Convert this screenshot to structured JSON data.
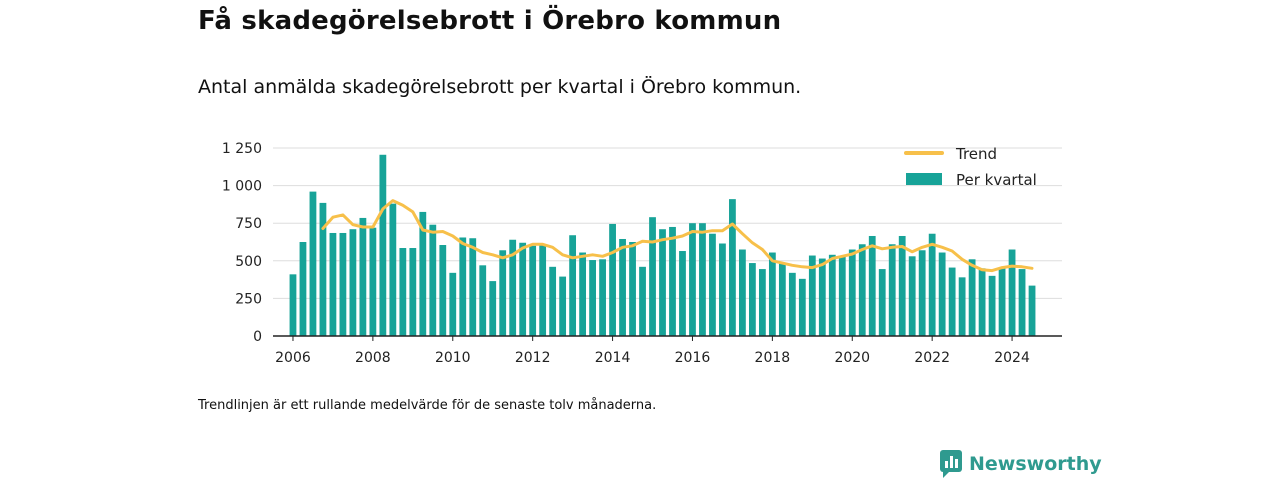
{
  "title": "Få skadegörelsebrott i Örebro kommun",
  "subtitle": "Antal anmälda skadegörelsebrott per kvartal i Örebro kommun.",
  "footnote": "Trendlinjen är ett rullande medelvärde för de senaste tolv månaderna.",
  "brand": {
    "name": "Newsworthy",
    "icon": "newsworthy-logo-icon"
  },
  "colors": {
    "bars": "#17a398",
    "trend": "#f7c04a",
    "grid": "#dddddd",
    "axis": "#222222"
  },
  "chart_data": {
    "type": "bar",
    "title": "",
    "xlabel": "",
    "ylabel": "",
    "ylim": [
      0,
      1250
    ],
    "y_ticks": [
      0,
      250,
      500,
      750,
      1000,
      1250
    ],
    "y_tick_labels": [
      "0",
      "250",
      "500",
      "750",
      "1 000",
      "1 250"
    ],
    "xlim": [
      2005.5,
      2025.25
    ],
    "x_ticks": [
      2006,
      2008,
      2010,
      2012,
      2014,
      2016,
      2018,
      2020,
      2022,
      2024
    ],
    "x_tick_labels": [
      "2006",
      "2008",
      "2010",
      "2012",
      "2014",
      "2016",
      "2018",
      "2020",
      "2022",
      "2024"
    ],
    "grid": true,
    "legend": {
      "position": "top-right",
      "entries": [
        {
          "label": "Trend",
          "kind": "line"
        },
        {
          "label": "Per kvartal",
          "kind": "bar"
        }
      ]
    },
    "start": {
      "year": 2006,
      "quarter": 1
    },
    "series": [
      {
        "name": "Per kvartal",
        "kind": "bar",
        "values": [
          410,
          625,
          960,
          885,
          685,
          685,
          710,
          785,
          720,
          1205,
          880,
          585,
          585,
          825,
          740,
          605,
          420,
          655,
          650,
          470,
          365,
          570,
          640,
          620,
          600,
          605,
          460,
          395,
          670,
          555,
          505,
          510,
          745,
          645,
          625,
          460,
          790,
          710,
          725,
          565,
          750,
          750,
          680,
          615,
          910,
          575,
          485,
          445,
          555,
          480,
          420,
          380,
          535,
          515,
          540,
          535,
          575,
          610,
          665,
          445,
          610,
          665,
          530,
          570,
          680,
          555,
          455,
          390,
          510,
          450,
          400,
          455,
          575,
          445,
          335
        ]
      },
      {
        "name": "Trend",
        "kind": "line",
        "values": [
          null,
          null,
          null,
          715,
          790,
          805,
          740,
          725,
          725,
          845,
          900,
          870,
          825,
          705,
          690,
          695,
          665,
          615,
          590,
          555,
          540,
          520,
          540,
          585,
          610,
          610,
          590,
          540,
          520,
          530,
          540,
          530,
          555,
          590,
          600,
          630,
          625,
          640,
          650,
          665,
          695,
          690,
          700,
          700,
          745,
          680,
          620,
          575,
          500,
          485,
          470,
          460,
          455,
          475,
          515,
          530,
          545,
          575,
          600,
          580,
          590,
          595,
          560,
          590,
          610,
          590,
          565,
          510,
          470,
          440,
          435,
          455,
          465,
          460,
          450
        ]
      }
    ]
  }
}
